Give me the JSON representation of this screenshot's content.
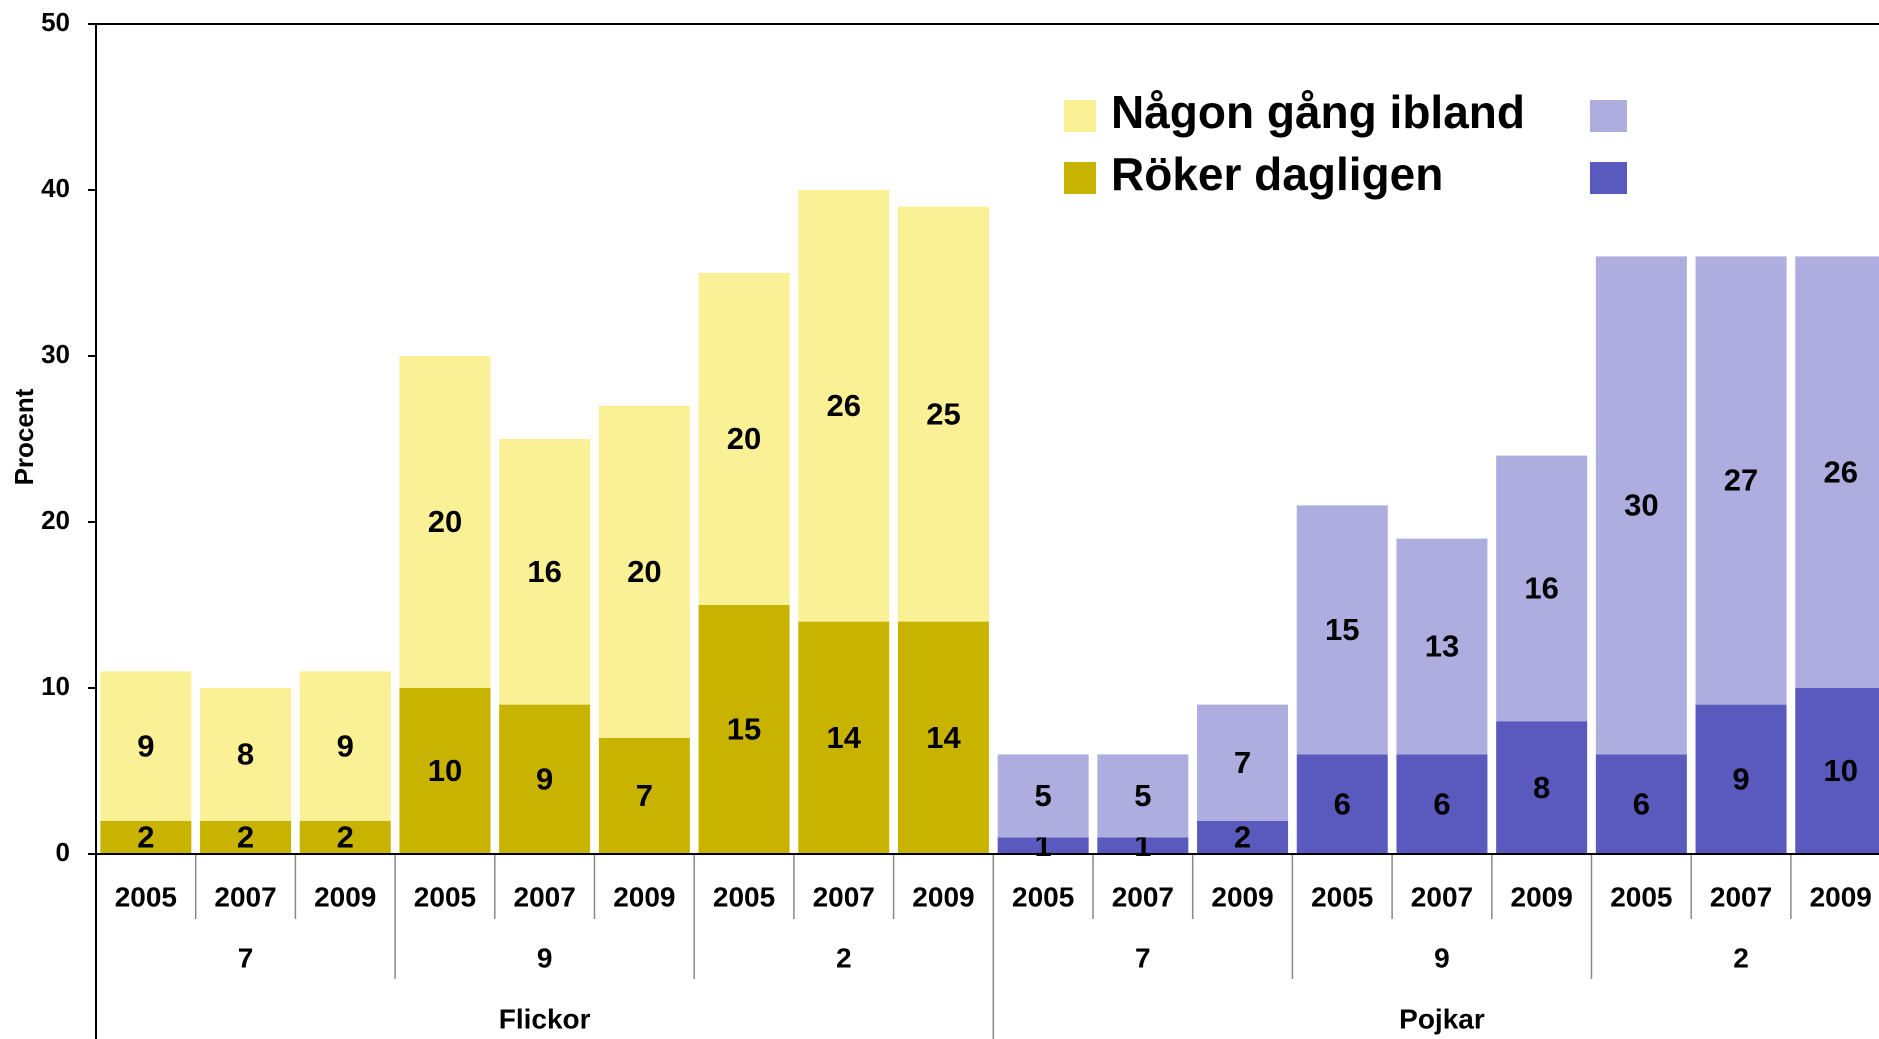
{
  "chart_data": {
    "type": "stacked_bar",
    "y_label": "Procent",
    "categories": [
      "2005",
      "2007",
      "2009",
      "2005",
      "2007",
      "2009",
      "2005",
      "2007",
      "2009",
      "2005",
      "2007",
      "2009",
      "2005",
      "2007",
      "2009",
      "2005",
      "2007",
      "2009"
    ],
    "subgroups": [
      "7",
      "9",
      "2",
      "7",
      "9",
      "2"
    ],
    "groups": [
      "Flickor",
      "Pojkar"
    ],
    "series": [
      {
        "name": "Röker dagligen",
        "colors": [
          "#c8b400",
          "#5a5abe"
        ],
        "values": [
          2,
          2,
          2,
          10,
          9,
          7,
          15,
          14,
          14,
          1,
          1,
          2,
          6,
          6,
          8,
          6,
          9,
          10
        ]
      },
      {
        "name": "Någon gång ibland",
        "colors": [
          "#faf096",
          "#adade0"
        ],
        "values": [
          9,
          8,
          9,
          20,
          16,
          20,
          20,
          26,
          25,
          5,
          5,
          7,
          15,
          13,
          16,
          30,
          27,
          26
        ]
      }
    ],
    "ylim": [
      0,
      50
    ],
    "yticks": [
      0,
      10,
      20,
      30,
      40,
      50
    ],
    "grid": false
  }
}
